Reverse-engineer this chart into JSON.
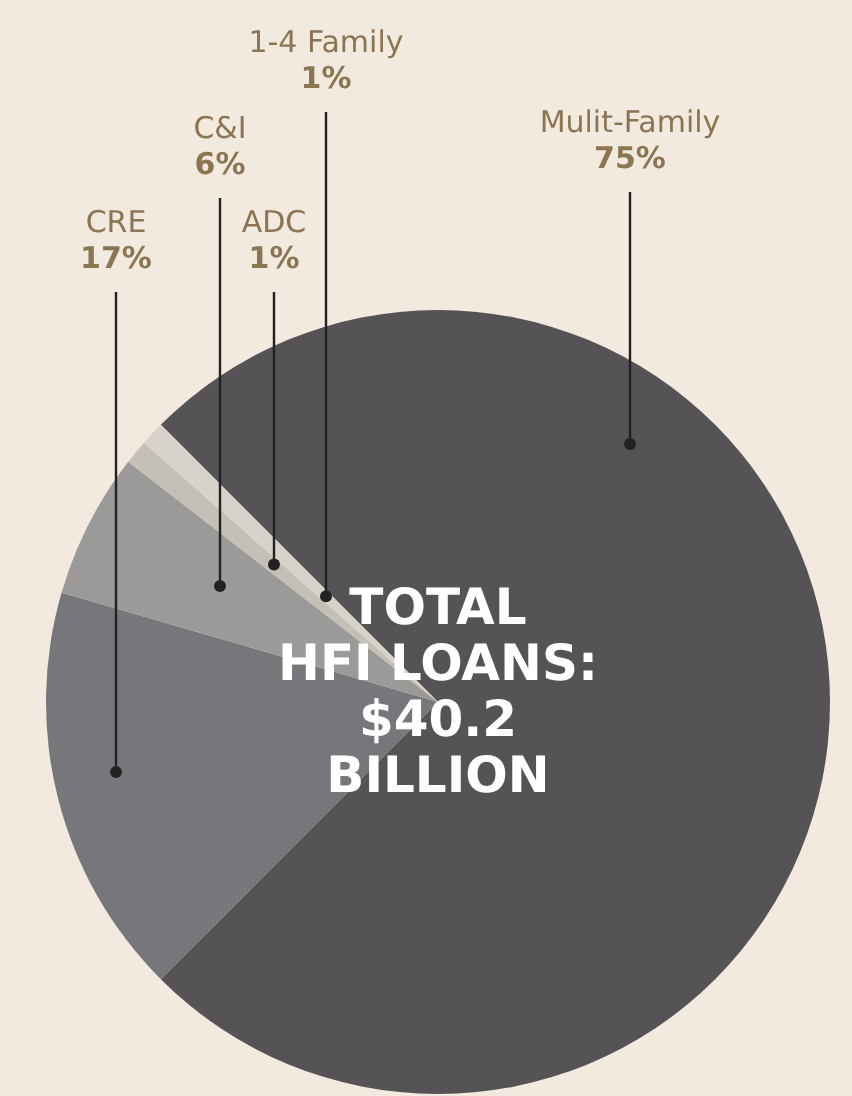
{
  "chart_data": {
    "type": "pie",
    "title": "TOTAL\nHFI LOANS:\n$40.2\nBILLION",
    "categories": [
      "Mulit-Family",
      "CRE",
      "C&I",
      "ADC",
      "1-4 Family"
    ],
    "values": [
      75,
      17,
      6,
      1,
      1
    ],
    "value_labels": [
      "75%",
      "17%",
      "6%",
      "1%",
      "1%"
    ],
    "colors": [
      "#555355",
      "#77777b",
      "#9c9a98",
      "#c4c0b8",
      "#d8d3ca"
    ]
  }
}
